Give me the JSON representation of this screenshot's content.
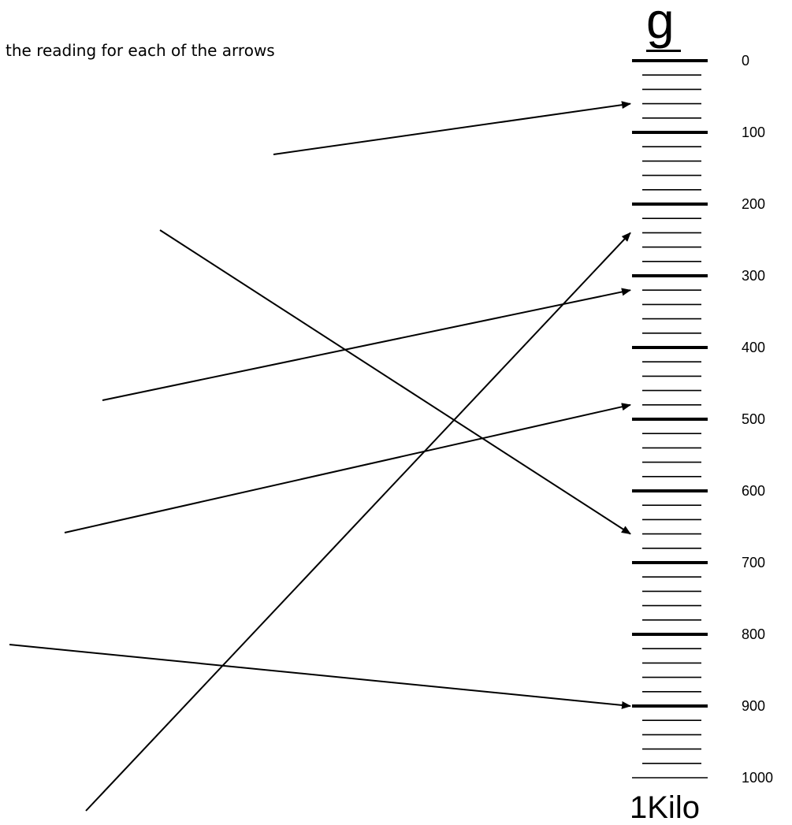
{
  "instruction": "n the reading for each of the arrows",
  "scale": {
    "unit_top": "g",
    "unit_bottom": "1Kilo",
    "min": 0,
    "max": 1000,
    "major_step": 100,
    "minor_step": 20,
    "labels": [
      "0",
      "100",
      "200",
      "300",
      "400",
      "500",
      "600",
      "700",
      "800",
      "900",
      "1000"
    ]
  },
  "arrows": [
    {
      "id": "arrow-1",
      "points_to": 60
    },
    {
      "id": "arrow-2",
      "points_to": 660
    },
    {
      "id": "arrow-3",
      "points_to": 240
    },
    {
      "id": "arrow-4",
      "points_to": 320
    },
    {
      "id": "arrow-5",
      "points_to": 480
    },
    {
      "id": "arrow-6",
      "points_to": 900
    }
  ],
  "colors": {
    "ink": "#000000",
    "background": "#ffffff"
  }
}
